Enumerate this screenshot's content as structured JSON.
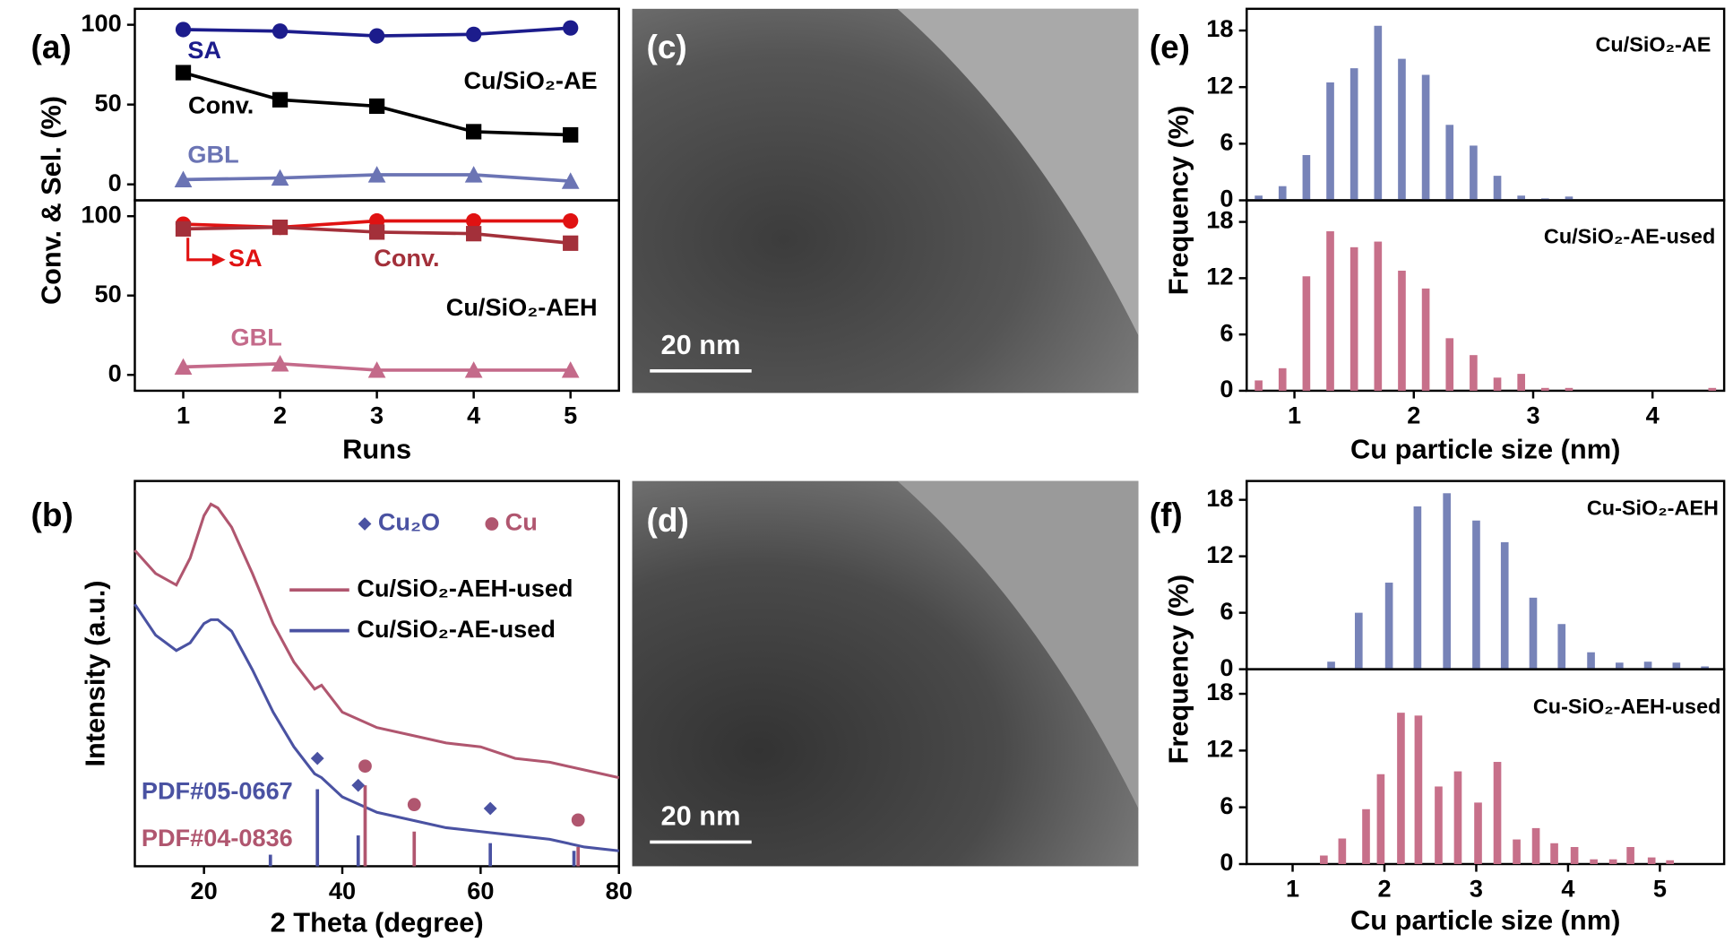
{
  "chart_data": [
    {
      "type": "line",
      "panel": "(a)",
      "ylabel": "Conv. & Sel. (%)",
      "x": [
        1,
        2,
        3,
        4,
        5
      ],
      "xlim": [
        0.5,
        5.5
      ],
      "ylim": [
        -10,
        110
      ],
      "yticks": [
        0,
        50,
        100
      ],
      "annotations": [
        "Cu/SiO₂-AE"
      ],
      "series": [
        {
          "name": "SA",
          "color": "#1c1c8c",
          "marker": "circle",
          "values": [
            97,
            96,
            93,
            94,
            98
          ]
        },
        {
          "name": "Conv.",
          "color": "#000000",
          "marker": "square",
          "values": [
            70,
            53,
            49,
            33,
            31
          ]
        },
        {
          "name": "GBL",
          "color": "#6b74b4",
          "marker": "triangle",
          "values": [
            3,
            4,
            6,
            6,
            2
          ]
        }
      ]
    },
    {
      "type": "line",
      "xlabel": "Runs",
      "x": [
        1,
        2,
        3,
        4,
        5
      ],
      "xlim": [
        0.5,
        5.5
      ],
      "xticks": [
        1,
        2,
        3,
        4,
        5
      ],
      "ylim": [
        -10,
        110
      ],
      "yticks": [
        0,
        50,
        100
      ],
      "annotations": [
        "Cu/SiO₂-AEH"
      ],
      "series": [
        {
          "name": "SA",
          "color": "#e01212",
          "marker": "circle",
          "values": [
            95,
            93,
            97,
            97,
            97
          ]
        },
        {
          "name": "Conv.",
          "color": "#a3303a",
          "marker": "square",
          "values": [
            92,
            93,
            90,
            89,
            83
          ]
        },
        {
          "name": "GBL",
          "color": "#c46a8a",
          "marker": "triangle",
          "values": [
            5,
            7,
            3,
            3,
            3
          ]
        }
      ]
    },
    {
      "type": "line",
      "panel": "(b)",
      "xlabel": "2 Theta (degree)",
      "ylabel": "Intensity (a.u.)",
      "xlim": [
        10,
        80
      ],
      "xticks": [
        20,
        40,
        60,
        80
      ],
      "ylim": [
        0,
        100
      ],
      "x": [
        10,
        13,
        16,
        18,
        20,
        21,
        22,
        24,
        27,
        30,
        33,
        36,
        37,
        40,
        45,
        50,
        55,
        60,
        65,
        70,
        75,
        80
      ],
      "series": [
        {
          "name": "Cu/SiO₂-AEH-used",
          "color": "#b0566f",
          "values": [
            82,
            76,
            73,
            80,
            91,
            94,
            93,
            88,
            76,
            63,
            53,
            46,
            47,
            40,
            36,
            34,
            32,
            31,
            28,
            27,
            25,
            23
          ]
        },
        {
          "name": "Cu/SiO₂-AE-used",
          "color": "#4a52a2",
          "values": [
            68,
            60,
            56,
            58,
            63,
            64,
            64,
            61,
            51,
            40,
            31,
            24,
            23,
            18,
            14,
            12,
            10,
            9,
            8,
            7,
            5,
            4
          ]
        }
      ],
      "references": [
        {
          "name": "PDF#05-0667",
          "color": "#4a52a2",
          "x": [
            29.6,
            36.4,
            42.3,
            61.4,
            73.5
          ],
          "values": [
            3,
            20,
            8,
            6,
            4
          ]
        },
        {
          "name": "PDF#04-0836",
          "color": "#b0566f",
          "x": [
            43.3,
            50.4,
            74.1
          ],
          "values": [
            21,
            9,
            5
          ]
        }
      ],
      "markers": [
        {
          "name": "Cu₂O",
          "shape": "diamond",
          "color": "#4a52a2",
          "x": [
            36.4,
            42.3,
            61.4
          ],
          "values": [
            28,
            21,
            15
          ]
        },
        {
          "name": "Cu",
          "shape": "circle",
          "color": "#b0566f",
          "x": [
            43.3,
            50.4,
            74.1
          ],
          "values": [
            26,
            16,
            12
          ]
        }
      ]
    },
    {
      "type": "image",
      "panel": "(c)",
      "scale_bar": "20 nm"
    },
    {
      "type": "image",
      "panel": "(d)",
      "scale_bar": "20 nm"
    },
    {
      "type": "bar",
      "panel": "(e)",
      "ylabel": "Frequency (%)",
      "xlim": [
        0.6,
        4.6
      ],
      "ylim": [
        0,
        20.3
      ],
      "yticks": [
        0,
        6,
        12,
        18
      ],
      "x": [
        0.7,
        0.9,
        1.1,
        1.3,
        1.5,
        1.7,
        1.9,
        2.1,
        2.3,
        2.5,
        2.7,
        2.9,
        3.1,
        3.3,
        3.7
      ],
      "series": [
        {
          "name": "Cu/SiO₂-AE",
          "color": "#7783b8",
          "values": [
            0.5,
            1.5,
            4.8,
            12.5,
            14,
            18.5,
            15,
            13.3,
            8,
            5.8,
            2.6,
            0.5,
            0.2,
            0.4,
            0.1
          ]
        }
      ]
    },
    {
      "type": "bar",
      "xlabel": "Cu particle size (nm)",
      "xlim": [
        0.6,
        4.6
      ],
      "xticks": [
        1,
        2,
        3,
        4
      ],
      "ylim": [
        0,
        20.3
      ],
      "yticks": [
        0,
        6,
        12,
        18
      ],
      "x": [
        0.7,
        0.9,
        1.1,
        1.3,
        1.5,
        1.7,
        1.9,
        2.1,
        2.3,
        2.5,
        2.7,
        2.9,
        3.1,
        3.3,
        4.5
      ],
      "series": [
        {
          "name": "Cu/SiO₂-AE-used",
          "color": "#c7708a",
          "values": [
            1.1,
            2.4,
            12.2,
            17,
            15.3,
            15.9,
            12.8,
            10.9,
            5.6,
            3.8,
            1.4,
            1.8,
            0.3,
            0.3,
            0.3
          ]
        }
      ]
    },
    {
      "type": "bar",
      "panel": "(f)",
      "ylabel": "Frequency (%)",
      "xlim": [
        0.5,
        5.7
      ],
      "ylim": [
        0,
        20
      ],
      "yticks": [
        0,
        6,
        12,
        18
      ],
      "x": [
        1.42,
        1.72,
        2.05,
        2.36,
        2.68,
        3.0,
        3.31,
        3.62,
        3.93,
        4.25,
        4.56,
        4.87,
        5.18,
        5.49
      ],
      "series": [
        {
          "name": "Cu-SiO₂-AEH",
          "color": "#7783b8",
          "values": [
            0.8,
            6,
            9.2,
            17.3,
            18.7,
            15.8,
            13.5,
            7.6,
            4.8,
            1.8,
            0.7,
            0.8,
            0.7,
            0.3
          ]
        }
      ]
    },
    {
      "type": "bar",
      "xlabel": "Cu particle size (nm)",
      "xlim": [
        0.5,
        5.7
      ],
      "xticks": [
        1,
        2,
        3,
        4,
        5
      ],
      "ylim": [
        0,
        20.6
      ],
      "yticks": [
        0,
        6,
        12,
        18
      ],
      "x": [
        1.34,
        1.54,
        1.8,
        1.96,
        2.18,
        2.37,
        2.59,
        2.8,
        3.02,
        3.23,
        3.44,
        3.65,
        3.85,
        4.07,
        4.28,
        4.49,
        4.68,
        4.91,
        5.11
      ],
      "series": [
        {
          "name": "Cu-SiO₂-AEH-used",
          "color": "#c7708a",
          "values": [
            0.9,
            2.7,
            5.8,
            9.5,
            16,
            15.7,
            8.2,
            9.8,
            6.5,
            10.8,
            2.6,
            3.8,
            2.2,
            1.8,
            0.5,
            0.5,
            1.8,
            0.7,
            0.4
          ]
        }
      ]
    }
  ]
}
